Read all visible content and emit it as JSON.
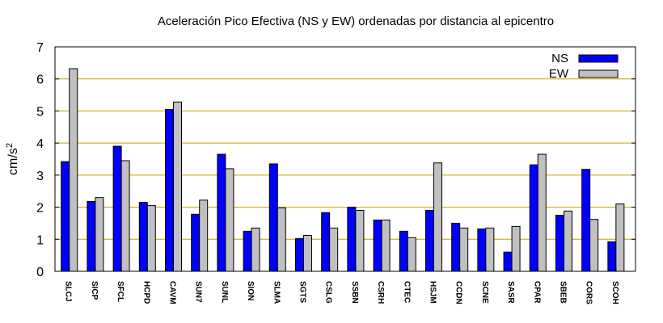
{
  "chart_data": {
    "type": "bar",
    "title": "Aceleración Pico Efectiva (NS y EW) ordenadas por distancia al epicentro",
    "ylabel": "cm/s",
    "ylabel_sup": "2",
    "ylim": [
      0,
      7
    ],
    "yticks": [
      0,
      1,
      2,
      3,
      4,
      5,
      6,
      7
    ],
    "grid": "horizontal",
    "legend_position": "top-right",
    "categories": [
      "SLCJ",
      "SICP",
      "SFCL",
      "HCPD",
      "CAVM",
      "SUN7",
      "SUNL",
      "SION",
      "SLMA",
      "SGTS",
      "CSLG",
      "SSBN",
      "CSRH",
      "CTEC",
      "HSJM",
      "CCDN",
      "SCNE",
      "SASR",
      "CPAR",
      "SBEB",
      "CORS",
      "SCOH"
    ],
    "series": [
      {
        "name": "NS",
        "color": "#0000ff",
        "values": [
          3.42,
          2.18,
          3.9,
          2.15,
          5.05,
          1.78,
          3.65,
          1.25,
          3.35,
          1.02,
          1.83,
          2.0,
          1.6,
          1.25,
          1.9,
          1.5,
          1.32,
          0.6,
          3.32,
          1.75,
          3.18,
          0.92
        ]
      },
      {
        "name": "EW",
        "color": "#c0c0c0",
        "values": [
          6.32,
          2.3,
          3.45,
          2.05,
          5.28,
          2.22,
          3.2,
          1.35,
          1.98,
          1.12,
          1.35,
          1.9,
          1.6,
          1.05,
          3.38,
          1.35,
          1.35,
          1.4,
          3.65,
          1.88,
          1.62,
          2.1
        ]
      }
    ],
    "colors": {
      "grid": "#c8a000",
      "axis": "#000000",
      "bar_outline": "#000000"
    }
  }
}
